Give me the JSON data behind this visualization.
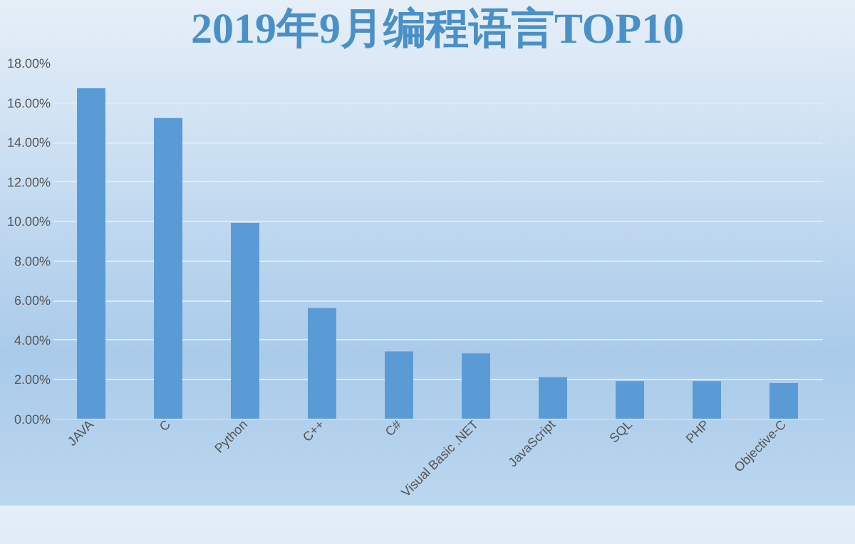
{
  "chart_data": {
    "type": "bar",
    "title": "2019年9月编程语言TOP10",
    "categories": [
      "JAVA",
      "C",
      "Python",
      "C++",
      "C#",
      "Visual Basic .NET",
      "JavaScript",
      "SQL",
      "PHP",
      "Objective-C"
    ],
    "values": [
      16.7,
      15.2,
      9.9,
      5.6,
      3.4,
      3.3,
      2.1,
      1.9,
      1.9,
      1.8
    ],
    "color": "#5b9bd5",
    "ylim": [
      0,
      18
    ],
    "yticks": [
      {
        "value": 0,
        "label": "0.00%"
      },
      {
        "value": 2,
        "label": "2.00%"
      },
      {
        "value": 4,
        "label": "4.00%"
      },
      {
        "value": 6,
        "label": "6.00%"
      },
      {
        "value": 8,
        "label": "8.00%"
      },
      {
        "value": 10,
        "label": "10.00%"
      },
      {
        "value": 12,
        "label": "12.00%"
      },
      {
        "value": 14,
        "label": "14.00%"
      },
      {
        "value": 16,
        "label": "16.00%"
      },
      {
        "value": 18,
        "label": "18.00%"
      }
    ],
    "grid": "y"
  }
}
